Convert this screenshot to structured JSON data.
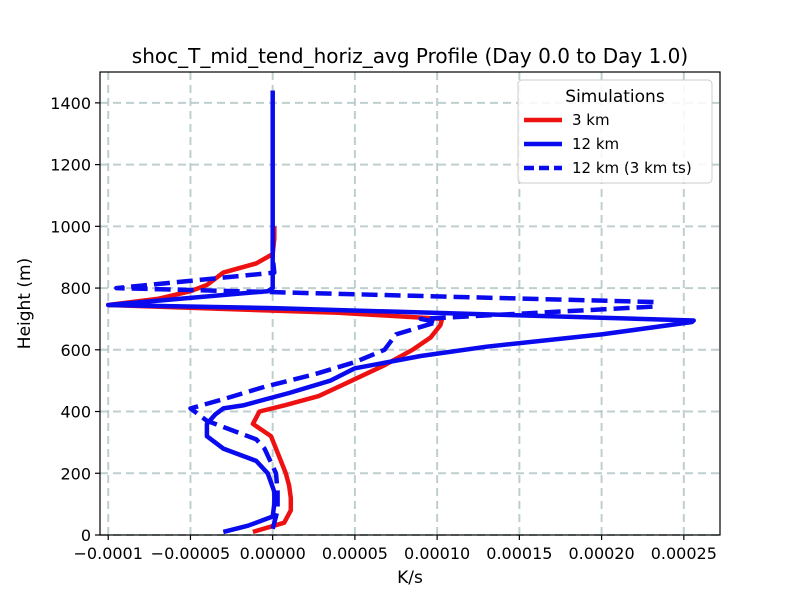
{
  "chart_data": {
    "type": "line",
    "title": "shoc_T_mid_tend_horiz_avg Profile (Day 0.0 to Day 1.0)",
    "xlabel": "K/s",
    "ylabel": "Height (m)",
    "xlim": [
      -0.000105,
      0.000272
    ],
    "ylim": [
      0,
      1500
    ],
    "x_ticks": [
      -0.0001,
      -5e-05,
      0.0,
      5e-05,
      0.0001,
      0.00015,
      0.0002,
      0.00025
    ],
    "x_tick_labels": [
      "−0.0001",
      "−0.00005",
      "0.00000",
      "0.00005",
      "0.00010",
      "0.00015",
      "0.00020",
      "0.00025"
    ],
    "y_ticks": [
      0,
      200,
      400,
      600,
      800,
      1000,
      1200,
      1400
    ],
    "y_tick_labels": [
      "0",
      "200",
      "400",
      "600",
      "800",
      "1000",
      "1200",
      "1400"
    ],
    "grid": true,
    "legend": {
      "title": "Simulations",
      "placement": "top-right",
      "entries": [
        "3 km",
        "12 km",
        "12 km (3 km ts)"
      ]
    },
    "series": [
      {
        "name": "3 km",
        "color": "#ee1111",
        "style": "solid",
        "points": [
          [
            -1.2e-05,
            10
          ],
          [
            7e-06,
            40
          ],
          [
            1.1e-05,
            80
          ],
          [
            1.1e-05,
            120
          ],
          [
            1e-05,
            160
          ],
          [
            8e-06,
            200
          ],
          [
            5e-06,
            240
          ],
          [
            -1e-06,
            320
          ],
          [
            -1.2e-05,
            360
          ],
          [
            -8e-06,
            400
          ],
          [
            7e-06,
            420
          ],
          [
            2.8e-05,
            450
          ],
          [
            4.8e-05,
            500
          ],
          [
            6.8e-05,
            550
          ],
          [
            8.5e-05,
            600
          ],
          [
            9.6e-05,
            640
          ],
          [
            0.000102,
            680
          ],
          [
            0.000103,
            700
          ],
          [
            4e-05,
            720
          ],
          [
            -0.0001,
            745
          ],
          [
            -7e-05,
            765
          ],
          [
            -5e-05,
            790
          ],
          [
            -4e-05,
            810
          ],
          [
            -3e-05,
            850
          ],
          [
            -1e-05,
            880
          ],
          [
            0.0,
            910
          ],
          [
            1e-06,
            960
          ],
          [
            1e-06,
            1000
          ]
        ]
      },
      {
        "name": "12 km",
        "color": "#0a0aee",
        "style": "solid",
        "points": [
          [
            -3e-05,
            10
          ],
          [
            -1.5e-05,
            30
          ],
          [
            0.0,
            60
          ],
          [
            1e-06,
            100
          ],
          [
            1e-06,
            140
          ],
          [
            -3e-06,
            200
          ],
          [
            -1e-05,
            240
          ],
          [
            -3e-05,
            280
          ],
          [
            -4e-05,
            320
          ],
          [
            -4e-05,
            360
          ],
          [
            -3.5e-05,
            390
          ],
          [
            -3e-05,
            410
          ],
          [
            -1.8e-05,
            420
          ],
          [
            1e-05,
            460
          ],
          [
            3.5e-05,
            500
          ],
          [
            5e-05,
            540
          ],
          [
            9e-05,
            580
          ],
          [
            0.00013,
            610
          ],
          [
            0.0002,
            650
          ],
          [
            0.000255,
            690
          ],
          [
            0.000256,
            695
          ],
          [
            0.0,
            735
          ],
          [
            -0.0001,
            745
          ],
          [
            -3e-06,
            790
          ],
          [
            0.0,
            800
          ],
          [
            0.0,
            850
          ],
          [
            0.0,
            950
          ],
          [
            0.0,
            1200
          ],
          [
            0.0,
            1440
          ]
        ]
      },
      {
        "name": "12 km (3 km ts)",
        "color": "#0a0aee",
        "style": "dashed",
        "points": [
          [
            0.0,
            20
          ],
          [
            3e-06,
            80
          ],
          [
            3e-06,
            140
          ],
          [
            2e-06,
            200
          ],
          [
            -5e-06,
            280
          ],
          [
            -1e-05,
            310
          ],
          [
            -4e-05,
            370
          ],
          [
            -5e-05,
            410
          ],
          [
            -3e-05,
            440
          ],
          [
            -5e-06,
            480
          ],
          [
            2.5e-05,
            520
          ],
          [
            5e-05,
            560
          ],
          [
            6.8e-05,
            600
          ],
          [
            7.5e-05,
            650
          ],
          [
            0.0001,
            690
          ],
          [
            9e-05,
            700
          ],
          [
            0.000232,
            740
          ],
          [
            0.000232,
            755
          ],
          [
            -9.5e-05,
            800
          ],
          [
            1e-06,
            850
          ],
          [
            0.0,
            900
          ],
          [
            0.0,
            970
          ]
        ]
      }
    ]
  }
}
